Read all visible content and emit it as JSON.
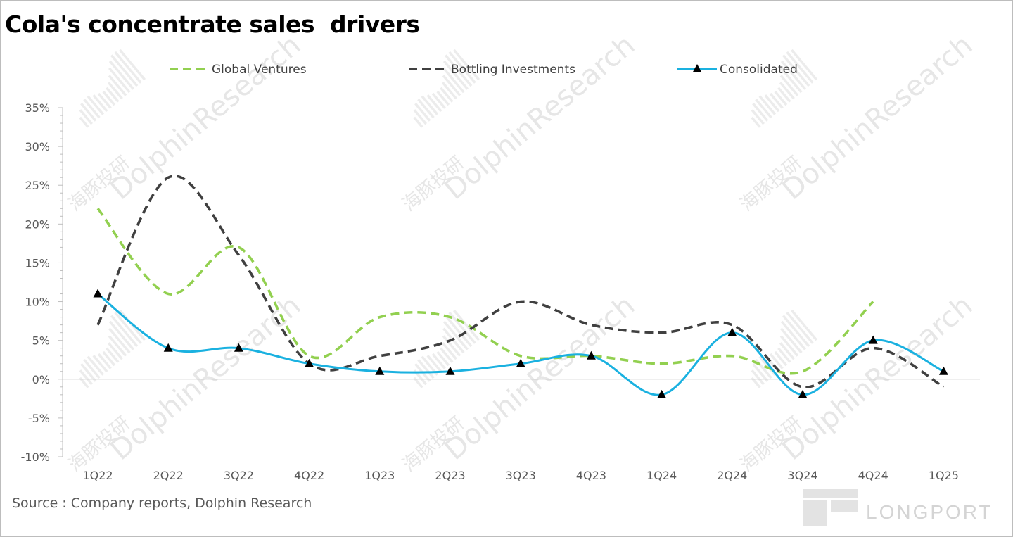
{
  "chart_data": {
    "type": "line",
    "title": "Cola's concentrate sales  drivers",
    "categories": [
      "1Q22",
      "2Q22",
      "3Q22",
      "4Q22",
      "1Q23",
      "2Q23",
      "3Q23",
      "4Q23",
      "1Q24",
      "2Q24",
      "3Q24",
      "4Q24",
      "1Q25"
    ],
    "xlabel": "",
    "ylabel": "",
    "ylim": [
      -10,
      35
    ],
    "yticks": [
      -10,
      -5,
      0,
      5,
      10,
      15,
      20,
      25,
      30,
      35
    ],
    "ytick_labels": [
      "-10%",
      "-5%",
      "0%",
      "5%",
      "10%",
      "15%",
      "20%",
      "25%",
      "30%",
      "35%"
    ],
    "legend_position": "top",
    "grid": false,
    "series": [
      {
        "name": "Global Ventures",
        "style": "dashed",
        "color": "#92d050",
        "values": [
          22,
          11,
          17,
          3,
          8,
          8,
          3,
          3,
          2,
          3,
          1,
          10,
          null
        ]
      },
      {
        "name": "Bottling Investments",
        "style": "dashed",
        "color": "#404040",
        "values": [
          7,
          26,
          16,
          2,
          3,
          5,
          10,
          7,
          6,
          7,
          -1,
          4,
          -1
        ]
      },
      {
        "name": "Consolidated",
        "style": "solid",
        "marker": "triangle",
        "color": "#1ab1e0",
        "values": [
          11,
          4,
          4,
          2,
          1,
          1,
          2,
          3,
          -2,
          6,
          -2,
          5,
          1
        ]
      }
    ]
  },
  "source_text": "Source : Company reports, Dolphin Research",
  "watermark": {
    "en": "DolphinResearch",
    "cn": "海豚投研",
    "brand": "LONGPORT"
  }
}
